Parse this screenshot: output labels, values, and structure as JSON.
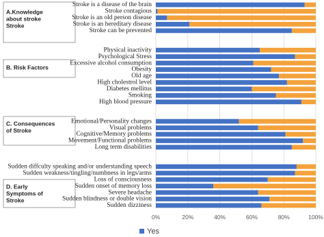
{
  "chart_data": {
    "type": "stacked-bar-horizontal",
    "categories": [
      "Stroke is a disease of the brain",
      "Stroke contagious",
      "Stroke is an old person disease",
      "Stroke is an hereditary disease",
      "Stroke can be prevented",
      null,
      null,
      "Physical inactivity",
      "Psychological Stress",
      "Excessive alcohol consumption",
      "Obesity",
      "Old age",
      "High cholestrol level",
      "Diabetes mellitus",
      "Smoking",
      "High blood pressure",
      null,
      null,
      "Emotional/Personality changes",
      "Visual problems",
      "Cognitive/Memory problems",
      "Movement/Functional problems",
      "Long term disabilities",
      null,
      null,
      "Sudden diffculty speaking and/or understanding speech",
      "Sudden weakness/tingling/numbness in legs/arms",
      "Loss of consciousness",
      "Sudden onset of memory loss",
      "Severe headache",
      "Sudden blindness or double vision",
      "Sudden dizziness"
    ],
    "series": [
      {
        "name": "Yes",
        "color": "#4472c4",
        "values": [
          93,
          1,
          7,
          21,
          85,
          null,
          null,
          65,
          87,
          61,
          72,
          77,
          82,
          60,
          75,
          91,
          null,
          null,
          52,
          64,
          81,
          92,
          85,
          null,
          null,
          88,
          87,
          70,
          36,
          64,
          71,
          66
        ]
      },
      {
        "color": "#f4a23c",
        "values": [
          7,
          99,
          93,
          79,
          15,
          null,
          null,
          35,
          13,
          39,
          28,
          23,
          18,
          40,
          25,
          9,
          null,
          null,
          48,
          36,
          19,
          8,
          15,
          null,
          null,
          12,
          13,
          30,
          64,
          36,
          29,
          34
        ]
      }
    ],
    "annotations": [
      [
        "A.Knowledge",
        "about stroke",
        "Stroke"
      ],
      [
        "B. Risk Factors"
      ],
      [
        "C. Consequences",
        "of Stroke"
      ],
      [
        "D. Early",
        "Symptoms of",
        "Stroke"
      ]
    ],
    "xlim": [
      0,
      100
    ],
    "xticks": [
      {
        "value": 0,
        "label": "0%"
      },
      {
        "value": 20,
        "label": "20%"
      },
      {
        "value": 40,
        "label": "40%"
      },
      {
        "value": 60,
        "label": "60%"
      },
      {
        "value": 80,
        "label": "80%"
      },
      {
        "value": 100,
        "label": "100%"
      }
    ],
    "grid": true
  }
}
